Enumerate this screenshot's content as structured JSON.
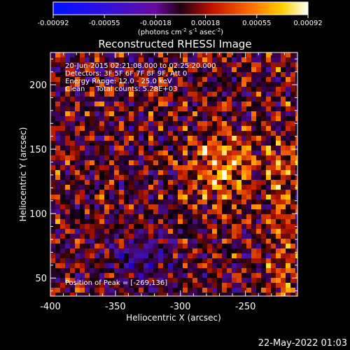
{
  "chart_data": {
    "type": "heatmap",
    "title": "Reconstructed RHESSI Image",
    "xlabel": "Heliocentric X (arcsec)",
    "ylabel": "Heliocentric Y (arcsec)",
    "xlim": [
      -400,
      -210
    ],
    "ylim": [
      36,
      225
    ],
    "x_ticks": [
      "-400",
      "-350",
      "-300",
      "-250"
    ],
    "x_tick_values": [
      -400,
      -350,
      -300,
      -250
    ],
    "y_ticks": [
      "50",
      "100",
      "150",
      "200"
    ],
    "y_tick_values": [
      50,
      100,
      150,
      200
    ],
    "colorbar": {
      "min": -0.00092,
      "max": 0.00092,
      "tick_labels": [
        "-0.00092",
        "-0.00055",
        "-0.00018",
        "0.00018",
        "0.00055",
        "0.00092"
      ],
      "tick_values": [
        -0.00092,
        -0.00055,
        -0.00018,
        0.00018,
        0.00055,
        0.00092
      ],
      "unit_main": "(photons cm",
      "unit_exp1": "-2",
      "unit_mid": " s",
      "unit_exp2": "-1",
      "unit_tail": " asec",
      "unit_exp3": "-2",
      "unit_end": ")"
    },
    "info_lines": [
      "20-Jun-2015 02:21:08.000 to 02:25:20.000",
      "Detectors: 3F 5F 6F 7F 8F 9F, Att 0",
      "Energy Range: 12.0 - 25.0 keV",
      "Clean     Total counts: 5.28E+03"
    ],
    "peak_label": "Position of Peak = [-269,136]",
    "peak": {
      "x": -269,
      "y": 136
    },
    "colormap": "red-temperature with blue negative",
    "grid": false
  },
  "footer": {
    "date": "22-May-2022 01:03"
  }
}
